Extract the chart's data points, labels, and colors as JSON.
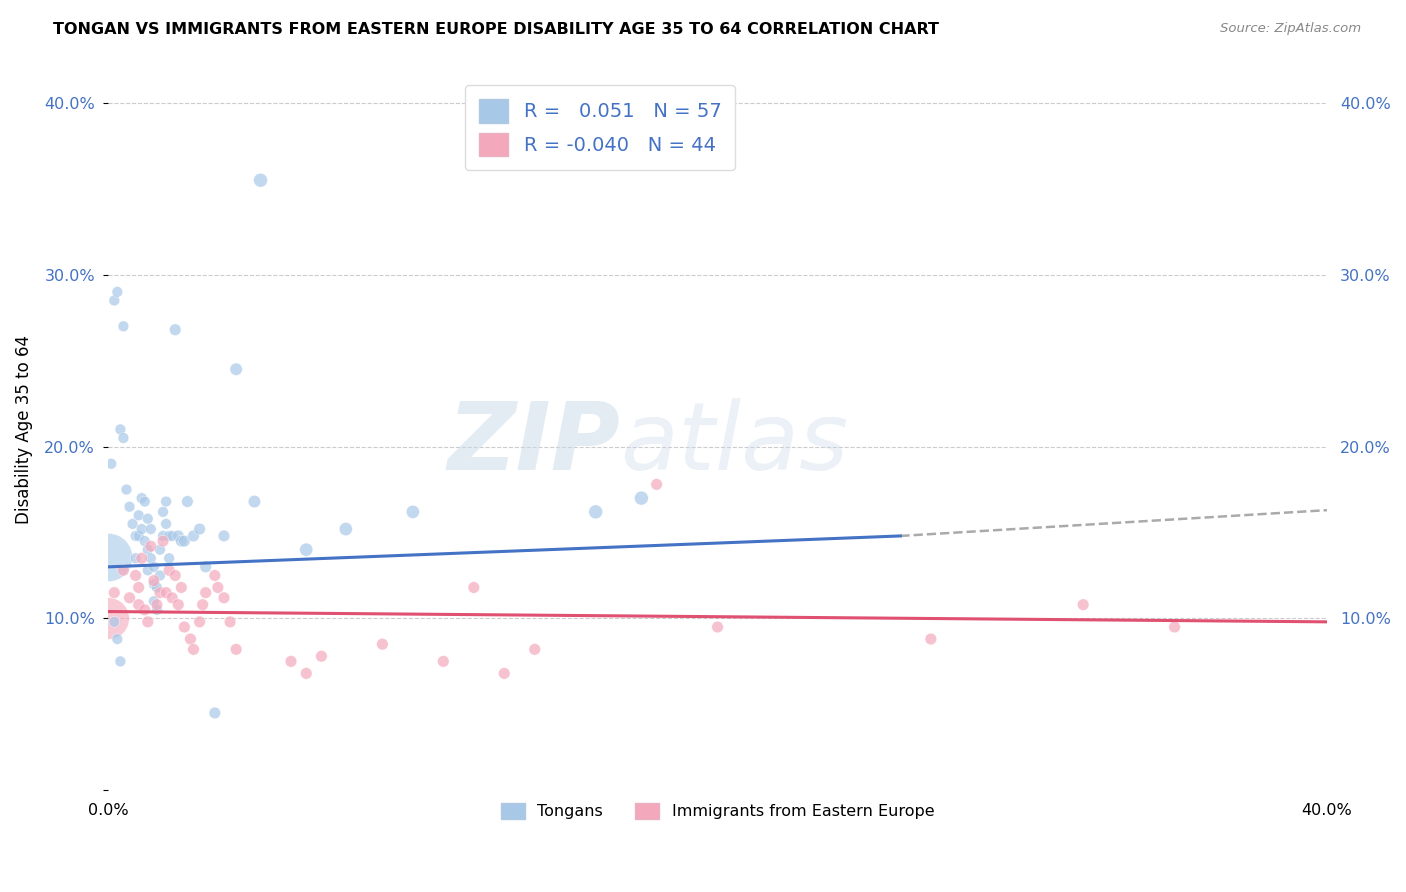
{
  "title": "TONGAN VS IMMIGRANTS FROM EASTERN EUROPE DISABILITY AGE 35 TO 64 CORRELATION CHART",
  "source": "Source: ZipAtlas.com",
  "ylabel": "Disability Age 35 to 64",
  "xlim": [
    0.0,
    0.4
  ],
  "ylim": [
    0.0,
    0.42
  ],
  "yticks": [
    0.0,
    0.1,
    0.2,
    0.3,
    0.4
  ],
  "ytick_labels_left": [
    "",
    "10.0%",
    "20.0%",
    "30.0%",
    "40.0%"
  ],
  "xtick_positions": [
    0.0,
    0.4
  ],
  "xtick_labels": [
    "0.0%",
    "40.0%"
  ],
  "blue_R": "0.051",
  "blue_N": "57",
  "pink_R": "-0.040",
  "pink_N": "44",
  "blue_color": "#a8c8e8",
  "pink_color": "#f4a8bc",
  "blue_line_color": "#4472c4",
  "pink_line_color": "#e05070",
  "axis_tick_color": "#4472c4",
  "dash_line_color": "#aaaaaa",
  "watermark": "ZIPatlas",
  "blue_line_x0": 0.0,
  "blue_line_y0": 0.13,
  "blue_line_x1": 0.26,
  "blue_line_y1": 0.148,
  "dash_line_x0": 0.26,
  "dash_line_y0": 0.148,
  "dash_line_x1": 0.4,
  "dash_line_y1": 0.163,
  "pink_line_x0": 0.0,
  "pink_line_y0": 0.104,
  "pink_line_x1": 0.4,
  "pink_line_y1": 0.098,
  "blue_scatter_x": [
    0.001,
    0.002,
    0.003,
    0.004,
    0.005,
    0.005,
    0.006,
    0.007,
    0.008,
    0.009,
    0.009,
    0.01,
    0.01,
    0.011,
    0.011,
    0.012,
    0.012,
    0.013,
    0.013,
    0.013,
    0.014,
    0.014,
    0.015,
    0.015,
    0.015,
    0.016,
    0.016,
    0.017,
    0.017,
    0.018,
    0.018,
    0.019,
    0.019,
    0.02,
    0.02,
    0.021,
    0.022,
    0.023,
    0.024,
    0.025,
    0.026,
    0.028,
    0.03,
    0.032,
    0.035,
    0.038,
    0.042,
    0.048,
    0.05,
    0.065,
    0.078,
    0.1,
    0.16,
    0.175,
    0.002,
    0.003,
    0.004
  ],
  "blue_scatter_y": [
    0.19,
    0.285,
    0.29,
    0.21,
    0.27,
    0.205,
    0.175,
    0.165,
    0.155,
    0.148,
    0.135,
    0.148,
    0.16,
    0.17,
    0.152,
    0.168,
    0.145,
    0.128,
    0.14,
    0.158,
    0.152,
    0.135,
    0.13,
    0.12,
    0.11,
    0.105,
    0.118,
    0.125,
    0.14,
    0.148,
    0.162,
    0.155,
    0.168,
    0.148,
    0.135,
    0.148,
    0.268,
    0.148,
    0.145,
    0.145,
    0.168,
    0.148,
    0.152,
    0.13,
    0.045,
    0.148,
    0.245,
    0.168,
    0.355,
    0.14,
    0.152,
    0.162,
    0.162,
    0.17,
    0.098,
    0.088,
    0.075
  ],
  "blue_scatter_size": [
    60,
    60,
    60,
    60,
    60,
    60,
    60,
    60,
    60,
    60,
    60,
    60,
    60,
    60,
    60,
    60,
    60,
    60,
    60,
    60,
    60,
    60,
    60,
    60,
    60,
    60,
    60,
    60,
    60,
    60,
    60,
    60,
    60,
    60,
    60,
    60,
    70,
    70,
    70,
    70,
    70,
    70,
    70,
    70,
    70,
    70,
    80,
    80,
    100,
    90,
    90,
    90,
    100,
    100,
    60,
    60,
    60
  ],
  "blue_large_x": [
    0.0
  ],
  "blue_large_y": [
    0.136
  ],
  "blue_large_size": [
    1200
  ],
  "pink_scatter_x": [
    0.002,
    0.005,
    0.007,
    0.009,
    0.01,
    0.01,
    0.011,
    0.012,
    0.013,
    0.014,
    0.015,
    0.016,
    0.017,
    0.018,
    0.019,
    0.02,
    0.021,
    0.022,
    0.023,
    0.024,
    0.025,
    0.027,
    0.028,
    0.03,
    0.031,
    0.032,
    0.035,
    0.036,
    0.038,
    0.04,
    0.042,
    0.06,
    0.065,
    0.07,
    0.09,
    0.11,
    0.12,
    0.13,
    0.14,
    0.18,
    0.2,
    0.27,
    0.32,
    0.35
  ],
  "pink_scatter_y": [
    0.115,
    0.128,
    0.112,
    0.125,
    0.108,
    0.118,
    0.135,
    0.105,
    0.098,
    0.142,
    0.122,
    0.108,
    0.115,
    0.145,
    0.115,
    0.128,
    0.112,
    0.125,
    0.108,
    0.118,
    0.095,
    0.088,
    0.082,
    0.098,
    0.108,
    0.115,
    0.125,
    0.118,
    0.112,
    0.098,
    0.082,
    0.075,
    0.068,
    0.078,
    0.085,
    0.075,
    0.118,
    0.068,
    0.082,
    0.178,
    0.095,
    0.088,
    0.108,
    0.095
  ],
  "pink_scatter_size": [
    70,
    70,
    70,
    70,
    70,
    70,
    70,
    70,
    70,
    70,
    70,
    70,
    70,
    70,
    70,
    70,
    70,
    70,
    70,
    70,
    70,
    70,
    70,
    70,
    70,
    70,
    70,
    70,
    70,
    70,
    70,
    70,
    70,
    70,
    70,
    70,
    70,
    70,
    70,
    70,
    70,
    70,
    70,
    70
  ],
  "pink_large_x": [
    0.0
  ],
  "pink_large_y": [
    0.1
  ],
  "pink_large_size": [
    900
  ]
}
